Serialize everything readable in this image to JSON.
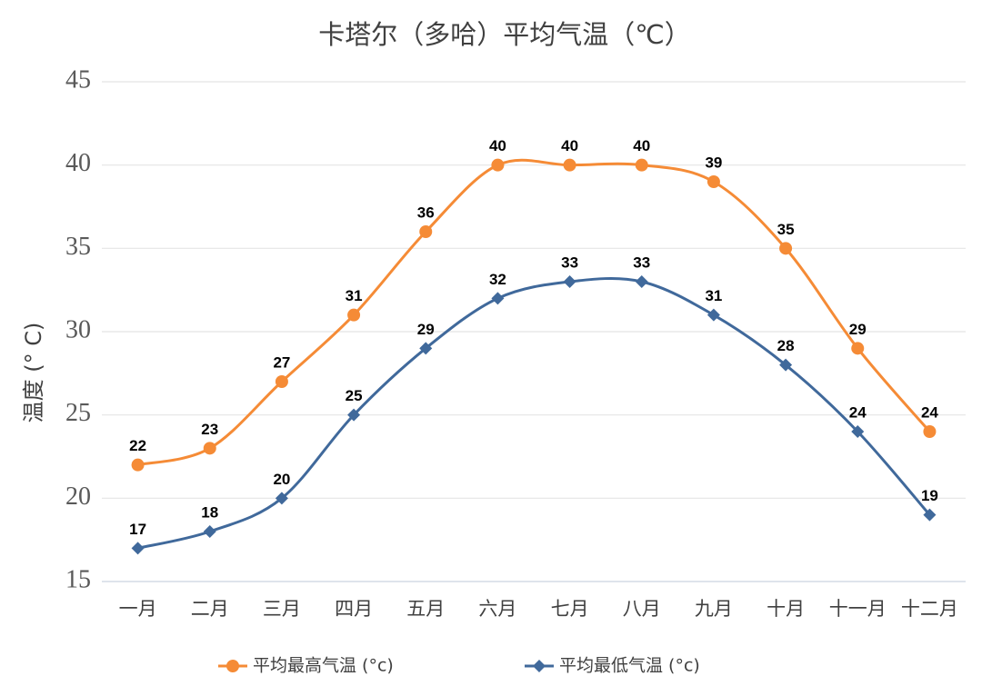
{
  "chart_data": {
    "type": "line",
    "title": "卡塔尔（多哈）平均气温（℃）",
    "y_label": "温度 (° C)",
    "categories": [
      "一月",
      "二月",
      "三月",
      "四月",
      "五月",
      "六月",
      "七月",
      "八月",
      "九月",
      "十月",
      "十一月",
      "十二月"
    ],
    "series": [
      {
        "name": "平均最高气温 (°c)",
        "color": "#f58b36",
        "marker": "circle",
        "values": [
          22,
          23,
          27,
          31,
          36,
          40,
          40,
          40,
          39,
          35,
          29,
          24
        ]
      },
      {
        "name": "平均最低气温 (°c)",
        "color": "#40699b",
        "marker": "diamond",
        "values": [
          17,
          18,
          20,
          25,
          29,
          32,
          33,
          33,
          31,
          28,
          24,
          19
        ]
      }
    ],
    "ylim": [
      15,
      45
    ],
    "yticks": [
      15,
      20,
      25,
      30,
      35,
      40,
      45
    ],
    "grid": true,
    "smooth": true,
    "legend": "bottom"
  }
}
